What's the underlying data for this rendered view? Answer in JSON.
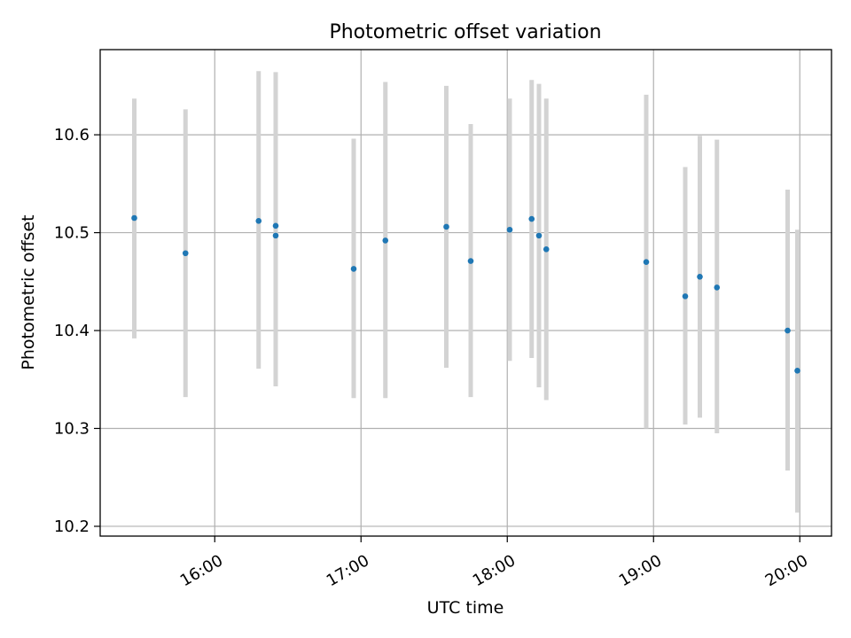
{
  "chart_data": {
    "type": "scatter",
    "title": "Photometric offset variation",
    "xlabel": "UTC time",
    "ylabel": "Photometric offset",
    "xlim": [
      "15:13",
      "20:13"
    ],
    "ylim": [
      10.19,
      10.687
    ],
    "x_ticks": [
      "16:00",
      "17:00",
      "18:00",
      "19:00",
      "20:00"
    ],
    "y_ticks": [
      10.2,
      10.3,
      10.4,
      10.5,
      10.6
    ],
    "y_tick_labels": [
      "10.2",
      "10.3",
      "10.4",
      "10.5",
      "10.6"
    ],
    "grid": true,
    "point_color": "#1f77b4",
    "errorbar_color": "#d3d3d3",
    "series": [
      {
        "points": [
          {
            "x": "15:27",
            "y": 10.515,
            "ylo": 10.392,
            "yhi": 10.637
          },
          {
            "x": "15:48",
            "y": 10.479,
            "ylo": 10.332,
            "yhi": 10.626
          },
          {
            "x": "16:18",
            "y": 10.512,
            "ylo": 10.361,
            "yhi": 10.665
          },
          {
            "x": "16:25",
            "y": 10.497,
            "ylo": 10.343,
            "yhi": 10.664
          },
          {
            "x": "16:25",
            "y": 10.507,
            "ylo": 10.351,
            "yhi": 10.658
          },
          {
            "x": "16:57",
            "y": 10.463,
            "ylo": 10.331,
            "yhi": 10.596
          },
          {
            "x": "17:10",
            "y": 10.492,
            "ylo": 10.331,
            "yhi": 10.654
          },
          {
            "x": "17:35",
            "y": 10.506,
            "ylo": 10.362,
            "yhi": 10.65
          },
          {
            "x": "17:45",
            "y": 10.471,
            "ylo": 10.332,
            "yhi": 10.611
          },
          {
            "x": "18:01",
            "y": 10.503,
            "ylo": 10.369,
            "yhi": 10.637
          },
          {
            "x": "18:10",
            "y": 10.514,
            "ylo": 10.372,
            "yhi": 10.656
          },
          {
            "x": "18:13",
            "y": 10.497,
            "ylo": 10.342,
            "yhi": 10.652
          },
          {
            "x": "18:16",
            "y": 10.483,
            "ylo": 10.329,
            "yhi": 10.637
          },
          {
            "x": "18:57",
            "y": 10.47,
            "ylo": 10.3,
            "yhi": 10.641
          },
          {
            "x": "19:13",
            "y": 10.435,
            "ylo": 10.304,
            "yhi": 10.567
          },
          {
            "x": "19:19",
            "y": 10.455,
            "ylo": 10.311,
            "yhi": 10.599
          },
          {
            "x": "19:26",
            "y": 10.444,
            "ylo": 10.295,
            "yhi": 10.595
          },
          {
            "x": "19:55",
            "y": 10.4,
            "ylo": 10.257,
            "yhi": 10.544
          },
          {
            "x": "19:59",
            "y": 10.359,
            "ylo": 10.214,
            "yhi": 10.503
          }
        ]
      }
    ]
  }
}
